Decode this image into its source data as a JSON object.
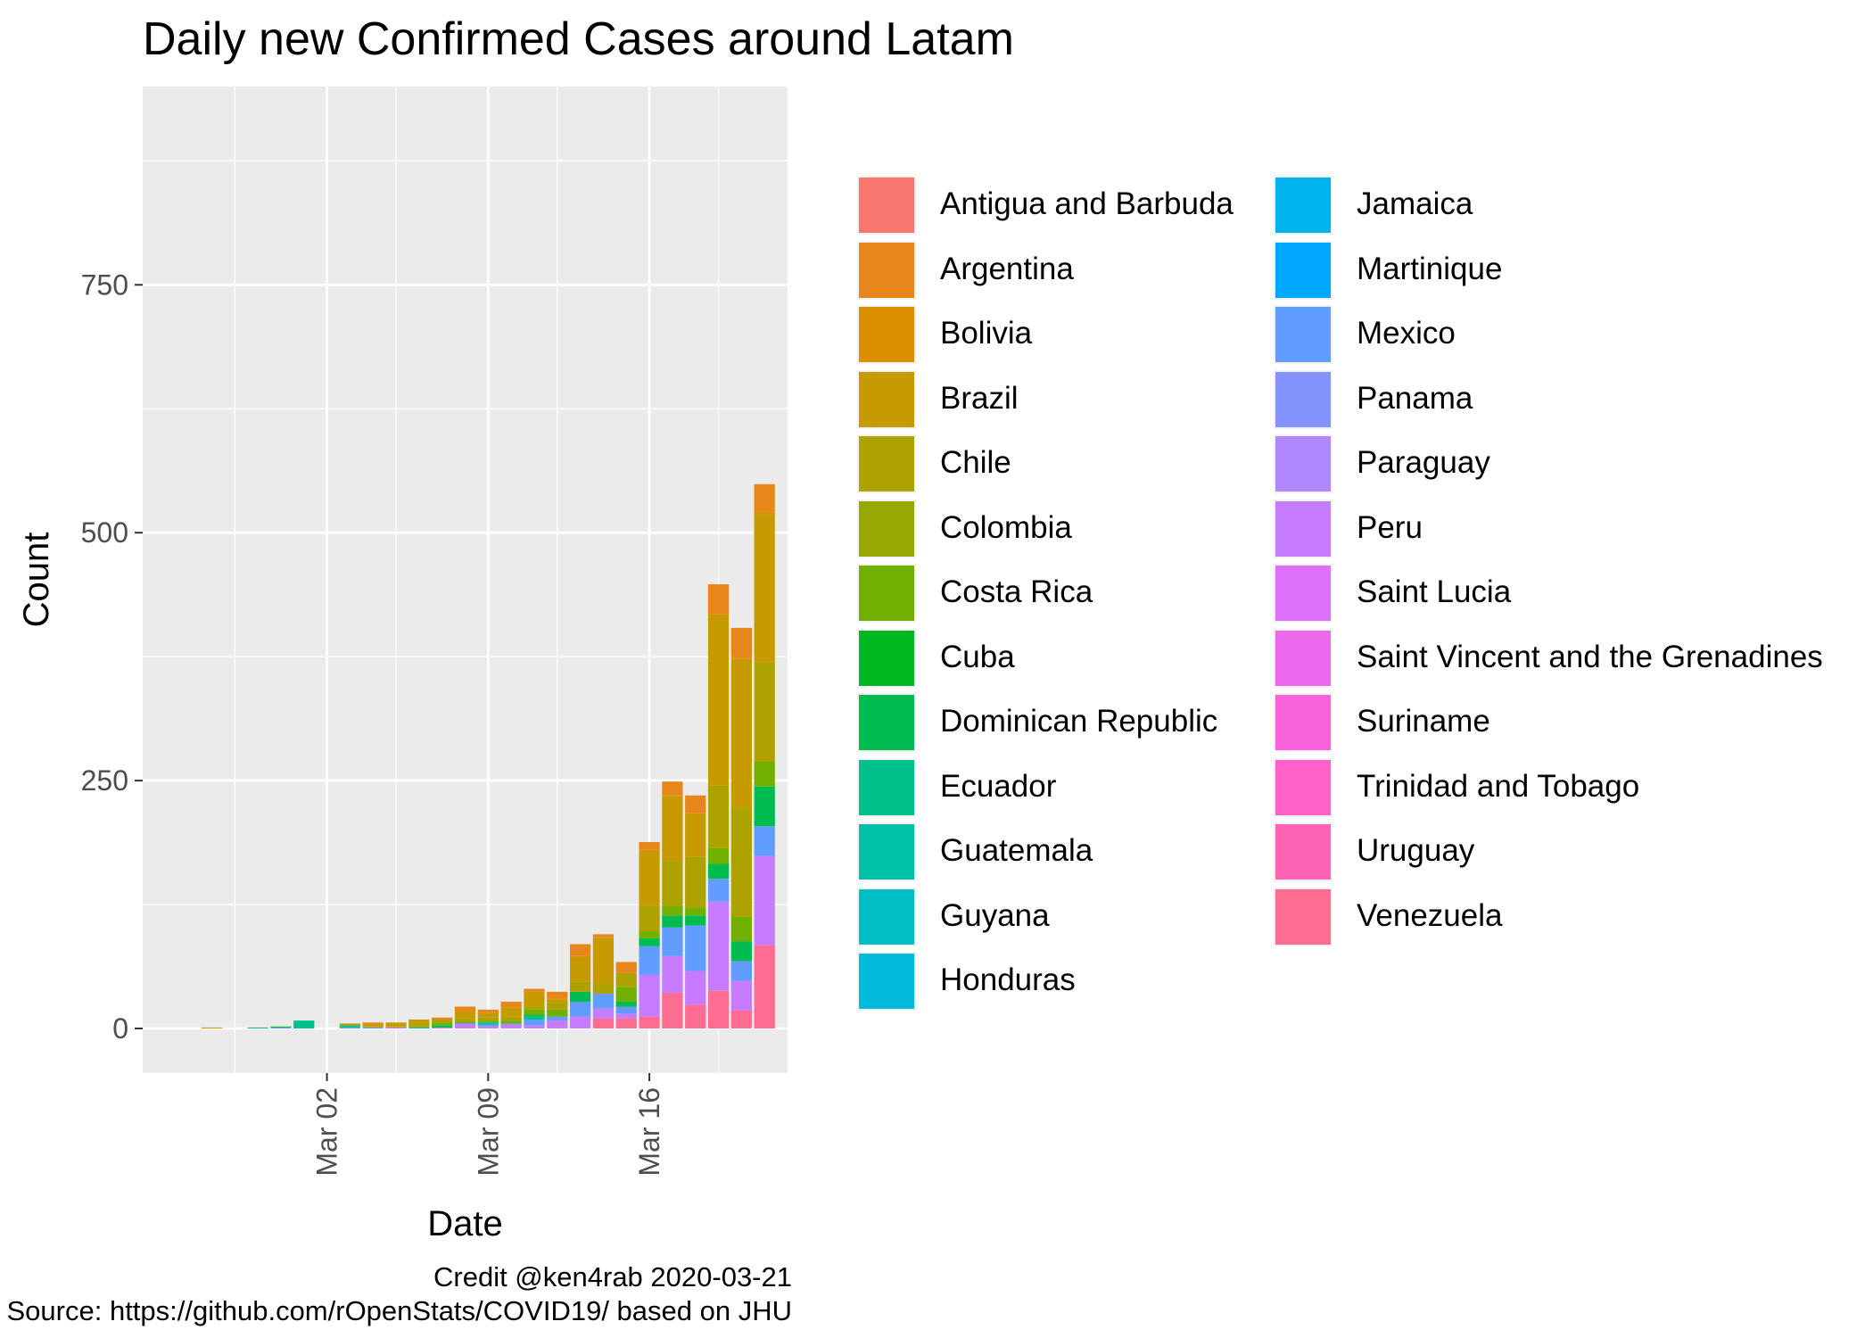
{
  "chart_data": {
    "type": "bar",
    "stacked": true,
    "title": "Daily new Confirmed Cases around Latam",
    "xlabel": "Date",
    "ylabel": "Count",
    "x_ticks": [
      "Mar 02",
      "Mar 09",
      "Mar 16"
    ],
    "y_ticks": [
      0,
      250,
      500,
      750
    ],
    "ylim": [
      -45,
      950
    ],
    "xlim": [
      "2020-02-23",
      "2020-03-22"
    ],
    "grid": true,
    "legend_position": "right",
    "categories": [
      "2020-02-26",
      "2020-02-28",
      "2020-02-29",
      "2020-03-01",
      "2020-03-02",
      "2020-03-03",
      "2020-03-04",
      "2020-03-05",
      "2020-03-06",
      "2020-03-07",
      "2020-03-08",
      "2020-03-09",
      "2020-03-10",
      "2020-03-11",
      "2020-03-12",
      "2020-03-13",
      "2020-03-14",
      "2020-03-15",
      "2020-03-16",
      "2020-03-17",
      "2020-03-18",
      "2020-03-19",
      "2020-03-20",
      "2020-03-21"
    ],
    "series": [
      {
        "name": "Antigua and Barbuda",
        "color": "#F8766D",
        "values": [
          0,
          0,
          0,
          0,
          0,
          0,
          0,
          0,
          0,
          0,
          0,
          0,
          0,
          0,
          0,
          0,
          0,
          0,
          0,
          0,
          0,
          0,
          0,
          0
        ]
      },
      {
        "name": "Argentina",
        "color": "#E7861B",
        "values": [
          0,
          0,
          0,
          0,
          0,
          0,
          1,
          0,
          0,
          2,
          5,
          3,
          5,
          3,
          7,
          12,
          3,
          11,
          8,
          14,
          18,
          30,
          30,
          28
        ]
      },
      {
        "name": "Bolivia",
        "color": "#DB8E00",
        "values": [
          0,
          0,
          0,
          0,
          0,
          0,
          0,
          0,
          0,
          0,
          0,
          0,
          1,
          0,
          1,
          1,
          1,
          0,
          1,
          1,
          0,
          1,
          1,
          2
        ]
      },
      {
        "name": "Brazil",
        "color": "#C69A00",
        "values": [
          1,
          0,
          0,
          0,
          0,
          1,
          3,
          4,
          5,
          0,
          7,
          5,
          9,
          15,
          3,
          25,
          46,
          0,
          55,
          65,
          44,
          172,
          150,
          150
        ]
      },
      {
        "name": "Chile",
        "color": "#AEA200",
        "values": [
          0,
          0,
          0,
          0,
          0,
          1,
          1,
          1,
          2,
          3,
          4,
          3,
          4,
          3,
          7,
          10,
          10,
          14,
          26,
          45,
          51,
          63,
          110,
          100
        ]
      },
      {
        "name": "Colombia",
        "color": "#96A900",
        "values": [
          0,
          0,
          0,
          0,
          0,
          0,
          0,
          0,
          0,
          0,
          0,
          0,
          0,
          0,
          0,
          0,
          0,
          0,
          0,
          0,
          0,
          0,
          0,
          0
        ]
      },
      {
        "name": "Costa Rica",
        "color": "#72B000",
        "values": [
          0,
          0,
          0,
          0,
          0,
          0,
          0,
          0,
          1,
          3,
          0,
          2,
          3,
          5,
          7,
          0,
          0,
          15,
          7,
          10,
          8,
          16,
          25,
          25
        ]
      },
      {
        "name": "Cuba",
        "color": "#00B81F",
        "values": [
          0,
          0,
          0,
          0,
          0,
          0,
          0,
          0,
          0,
          0,
          0,
          0,
          0,
          0,
          0,
          0,
          0,
          0,
          0,
          0,
          0,
          0,
          0,
          0
        ]
      },
      {
        "name": "Dominican Republic",
        "color": "#00BB4E",
        "values": [
          0,
          0,
          1,
          0,
          0,
          0,
          0,
          0,
          0,
          2,
          1,
          0,
          0,
          2,
          0,
          10,
          0,
          5,
          8,
          12,
          10,
          15,
          20,
          40
        ]
      },
      {
        "name": "Ecuador",
        "color": "#00C08B",
        "values": [
          0,
          1,
          0,
          8,
          0,
          2,
          0,
          0,
          1,
          0,
          0,
          2,
          0,
          3,
          0,
          0,
          0,
          0,
          0,
          0,
          0,
          0,
          0,
          0
        ]
      },
      {
        "name": "Guatemala",
        "color": "#00C1A7",
        "values": [
          0,
          0,
          0,
          0,
          0,
          0,
          0,
          0,
          0,
          0,
          0,
          0,
          0,
          0,
          0,
          0,
          0,
          0,
          0,
          0,
          0,
          0,
          0,
          0
        ]
      },
      {
        "name": "Guyana",
        "color": "#00BFC4",
        "values": [
          0,
          0,
          0,
          0,
          0,
          0,
          0,
          0,
          0,
          0,
          0,
          0,
          0,
          0,
          0,
          0,
          0,
          0,
          0,
          0,
          0,
          0,
          0,
          0
        ]
      },
      {
        "name": "Honduras",
        "color": "#00BBDB",
        "values": [
          0,
          0,
          0,
          0,
          0,
          0,
          0,
          0,
          0,
          0,
          0,
          0,
          0,
          0,
          0,
          0,
          0,
          0,
          0,
          0,
          0,
          0,
          0,
          0
        ]
      },
      {
        "name": "Jamaica",
        "color": "#00B4EF",
        "values": [
          0,
          0,
          0,
          0,
          0,
          0,
          0,
          0,
          0,
          0,
          0,
          0,
          0,
          0,
          0,
          0,
          0,
          0,
          0,
          0,
          0,
          0,
          0,
          0
        ]
      },
      {
        "name": "Martinique",
        "color": "#00A9FF",
        "values": [
          0,
          0,
          0,
          0,
          0,
          0,
          0,
          0,
          0,
          0,
          0,
          0,
          0,
          0,
          0,
          0,
          0,
          0,
          0,
          0,
          0,
          0,
          0,
          0
        ]
      },
      {
        "name": "Mexico",
        "color": "#619CFF",
        "values": [
          0,
          0,
          1,
          0,
          0,
          1,
          1,
          0,
          0,
          0,
          0,
          2,
          1,
          6,
          4,
          15,
          15,
          7,
          29,
          29,
          46,
          23,
          20,
          30
        ]
      },
      {
        "name": "Panama",
        "color": "#8494FF",
        "values": [
          0,
          0,
          0,
          0,
          0,
          0,
          0,
          0,
          0,
          0,
          0,
          0,
          0,
          0,
          0,
          0,
          0,
          0,
          0,
          0,
          0,
          0,
          0,
          0
        ]
      },
      {
        "name": "Paraguay",
        "color": "#AE87FF",
        "values": [
          0,
          0,
          0,
          0,
          0,
          0,
          0,
          0,
          0,
          0,
          0,
          0,
          0,
          0,
          0,
          0,
          0,
          0,
          0,
          0,
          0,
          0,
          0,
          0
        ]
      },
      {
        "name": "Peru",
        "color": "#C77CFF",
        "values": [
          0,
          0,
          0,
          0,
          0,
          0,
          0,
          1,
          0,
          1,
          5,
          2,
          4,
          3,
          8,
          12,
          10,
          5,
          42,
          37,
          34,
          90,
          30,
          90
        ]
      },
      {
        "name": "Saint Lucia",
        "color": "#DE71F9",
        "values": [
          0,
          0,
          0,
          0,
          0,
          0,
          0,
          0,
          0,
          0,
          0,
          0,
          0,
          0,
          0,
          0,
          0,
          0,
          0,
          0,
          0,
          0,
          0,
          0
        ]
      },
      {
        "name": "Saint Vincent and the Grenadines",
        "color": "#ED68ED",
        "values": [
          0,
          0,
          0,
          0,
          0,
          0,
          0,
          0,
          0,
          0,
          0,
          0,
          0,
          0,
          0,
          0,
          0,
          0,
          0,
          0,
          0,
          0,
          0,
          0
        ]
      },
      {
        "name": "Suriname",
        "color": "#F862DD",
        "values": [
          0,
          0,
          0,
          0,
          0,
          0,
          0,
          0,
          0,
          0,
          0,
          0,
          0,
          0,
          0,
          0,
          0,
          0,
          0,
          0,
          0,
          0,
          0,
          0
        ]
      },
      {
        "name": "Trinidad and Tobago",
        "color": "#FF61C9",
        "values": [
          0,
          0,
          0,
          0,
          0,
          0,
          0,
          0,
          0,
          0,
          0,
          0,
          0,
          0,
          0,
          0,
          0,
          0,
          0,
          0,
          0,
          0,
          0,
          0
        ]
      },
      {
        "name": "Uruguay",
        "color": "#FF63B4",
        "values": [
          0,
          0,
          0,
          0,
          0,
          0,
          0,
          0,
          0,
          0,
          0,
          0,
          0,
          0,
          0,
          0,
          0,
          0,
          0,
          0,
          0,
          0,
          0,
          0
        ]
      },
      {
        "name": "Venezuela",
        "color": "#FF6C91",
        "values": [
          0,
          0,
          0,
          0,
          0,
          0,
          0,
          0,
          0,
          0,
          0,
          0,
          0,
          0,
          0,
          0,
          10,
          10,
          12,
          36,
          24,
          38,
          18,
          84
        ]
      }
    ]
  },
  "credit": {
    "line1": "Credit @ken4rab 2020-03-21",
    "line2": "Source: https://github.com/rOpenStats/COVID19/ based on JHU"
  }
}
